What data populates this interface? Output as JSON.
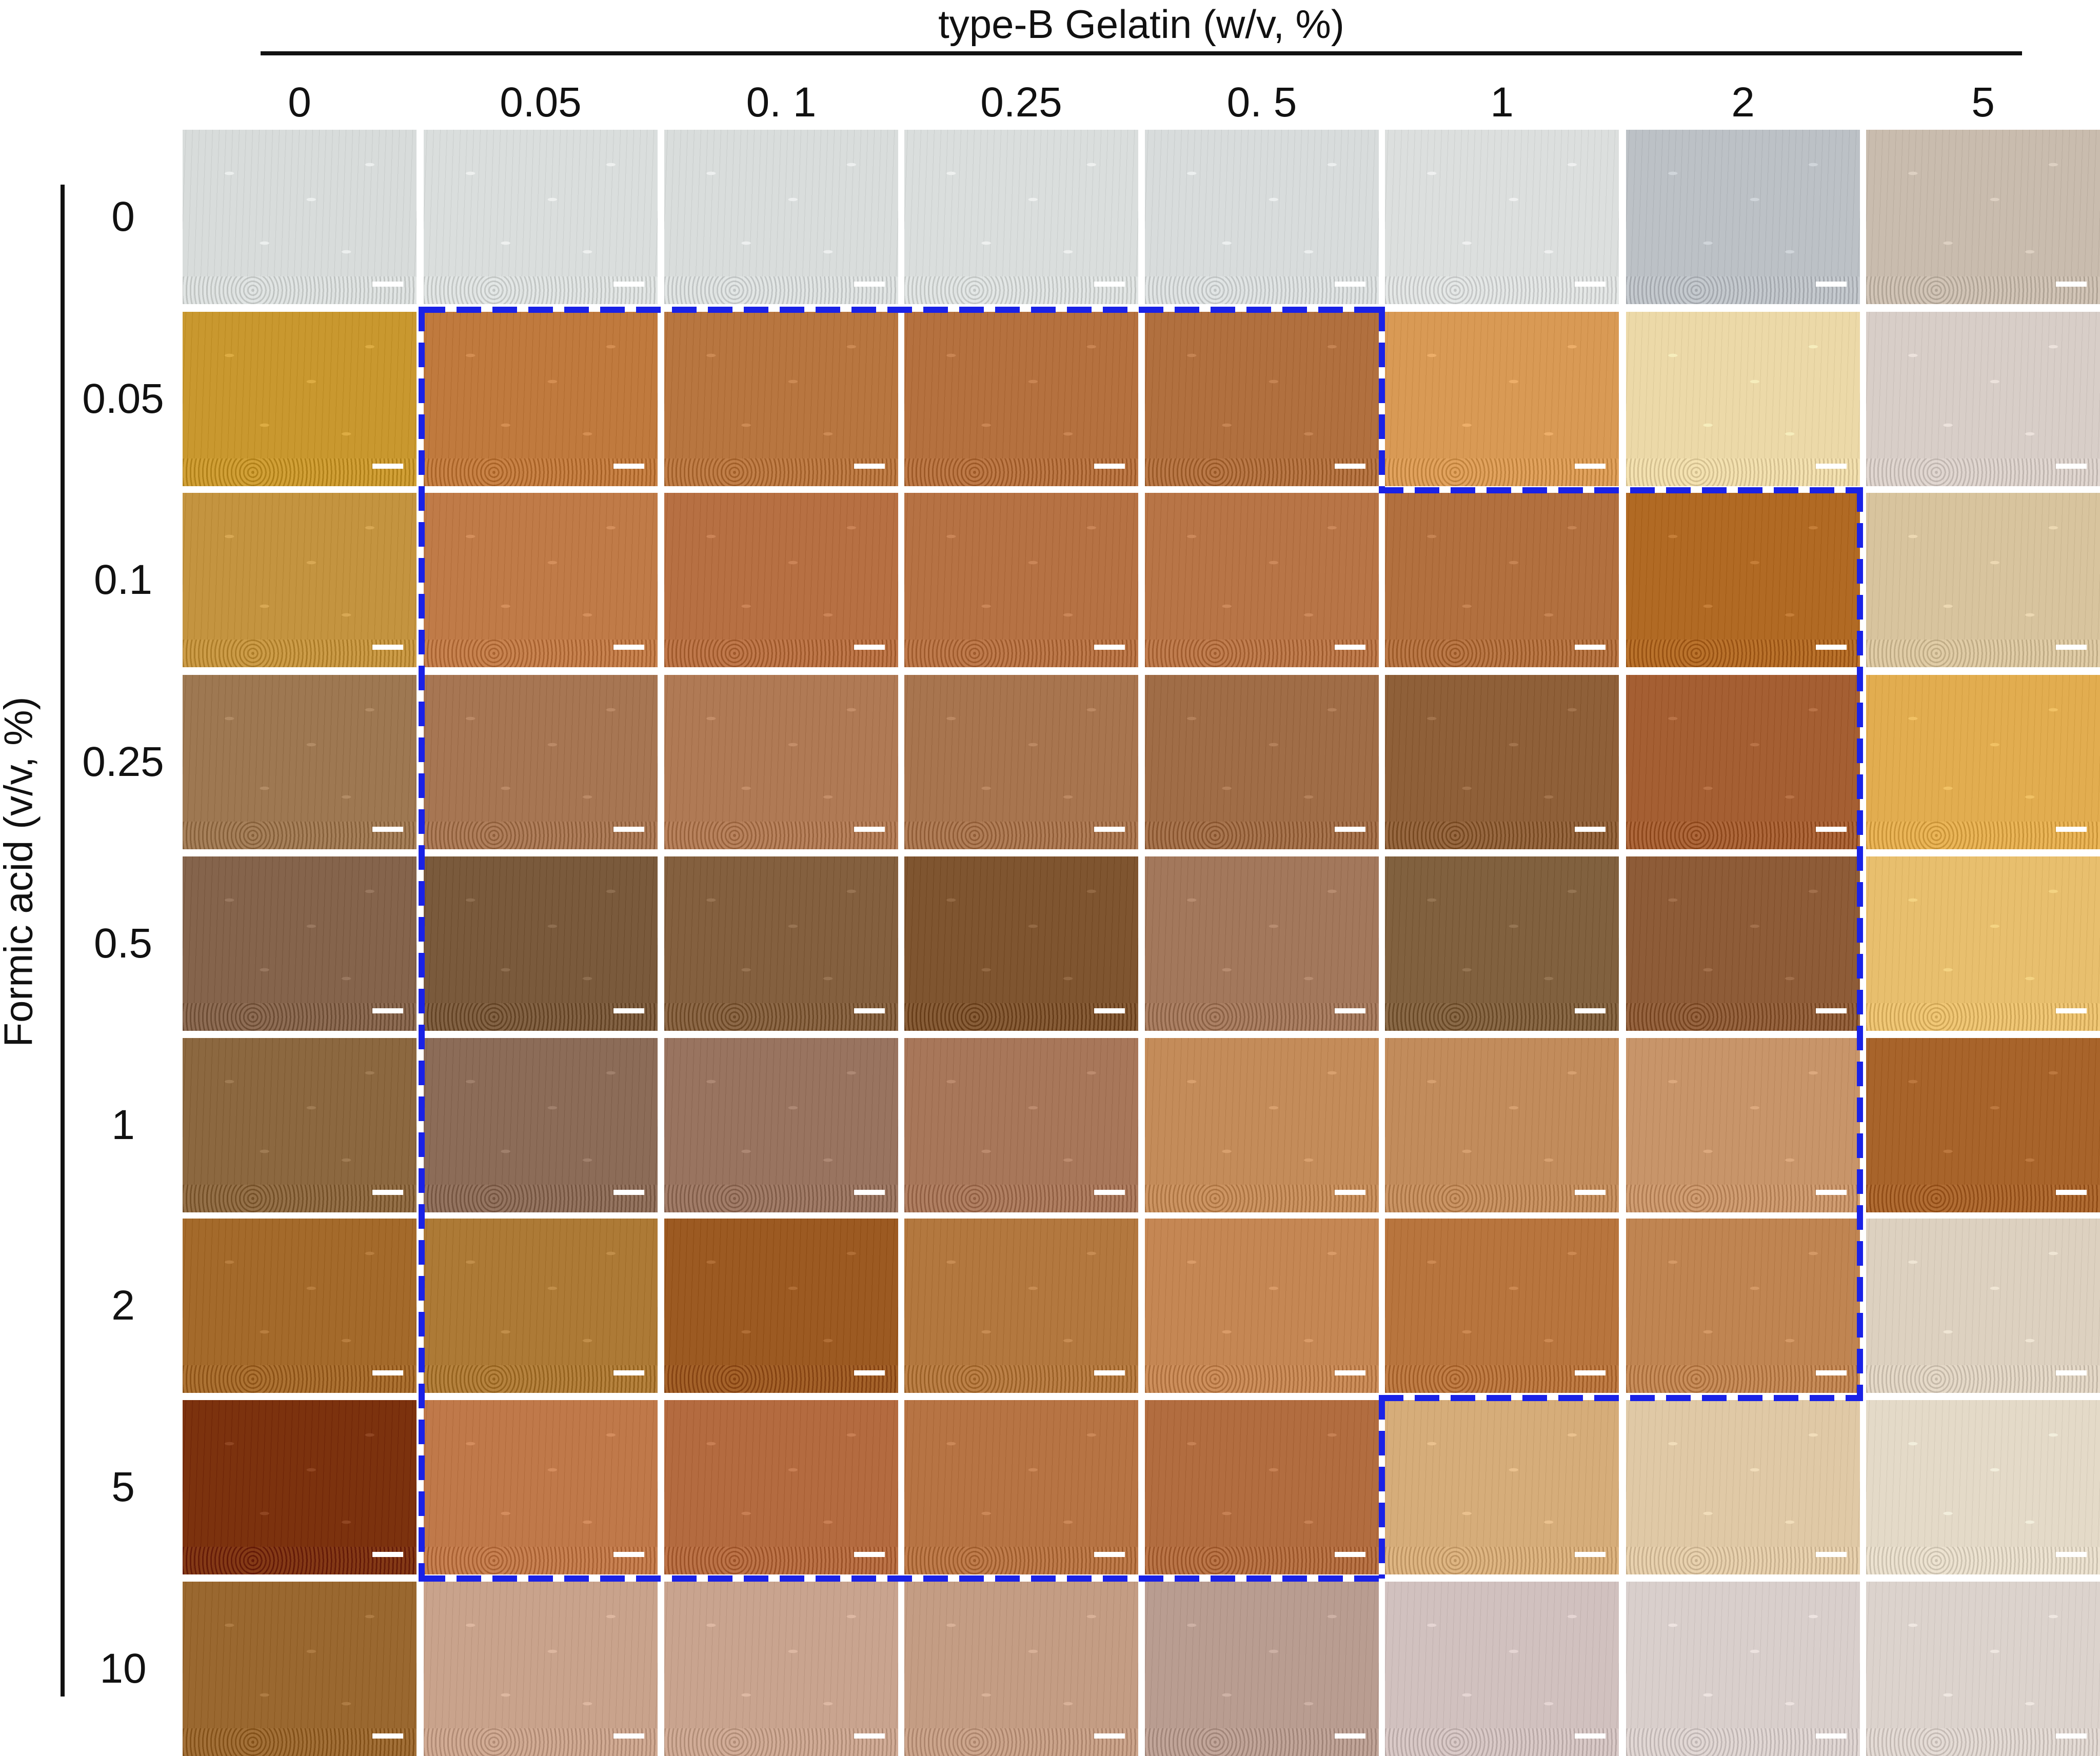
{
  "figure": {
    "x_axis_title": "type-B Gelatin (w/v, %)",
    "y_axis_title": "Formic acid (v/v, %)",
    "gelatin_concentrations": [
      "0",
      "0.05",
      "0. 1",
      "0.25",
      "0. 5",
      "1",
      "2",
      "5"
    ],
    "formic_acid_concentrations": [
      "0",
      "0.05",
      "0.1",
      "0.25",
      "0.5",
      "1",
      "2",
      "5",
      "10"
    ],
    "highlight_color": "#1a22e6",
    "tile_description": "stained histology micrographs with white scale bars",
    "tile_colors": [
      [
        "#d8dcdb",
        "#dadedd",
        "#d9dddc",
        "#dadedd",
        "#d8dcdc",
        "#dcdfde",
        "#bcc1c6",
        "#c9bcae"
      ],
      [
        "#c9982f",
        "#c07a3e",
        "#b87640",
        "#b5713f",
        "#b1703f",
        "#d99a55",
        "#ecd9a8",
        "#d8cec8"
      ],
      [
        "#c49440",
        "#c07b48",
        "#b77043",
        "#b67244",
        "#b87547",
        "#b2703f",
        "#b16a24",
        "#d8c49e"
      ],
      [
        "#9e7852",
        "#a77653",
        "#b07a55",
        "#a8754f",
        "#a06d47",
        "#8f6039",
        "#a55f33",
        "#e2ad50"
      ],
      [
        "#85644c",
        "#7a5a3c",
        "#84603f",
        "#7f5530",
        "#a3785c",
        "#81613f",
        "#8e5c38",
        "#e8bf6e"
      ],
      [
        "#8c6840",
        "#8c6c58",
        "#997460",
        "#a8775a",
        "#c48c5a",
        "#c28c5c",
        "#c8956a",
        "#a8642b"
      ],
      [
        "#a46a2b",
        "#ad7a36",
        "#9c5a22",
        "#b3783f",
        "#c58754",
        "#b8753e",
        "#c08552",
        "#ddd1c0"
      ],
      [
        "#7c320e",
        "#c0794a",
        "#b46b40",
        "#b77444",
        "#b26d40",
        "#d6ad7a",
        "#e0c9a6",
        "#e4dac8"
      ],
      [
        "#9a6830",
        "#c9a38c",
        "#c9a48f",
        "#c49d84",
        "#b99d91",
        "#d1c1bf",
        "#d9cfcc",
        "#dcd3cd"
      ]
    ]
  }
}
